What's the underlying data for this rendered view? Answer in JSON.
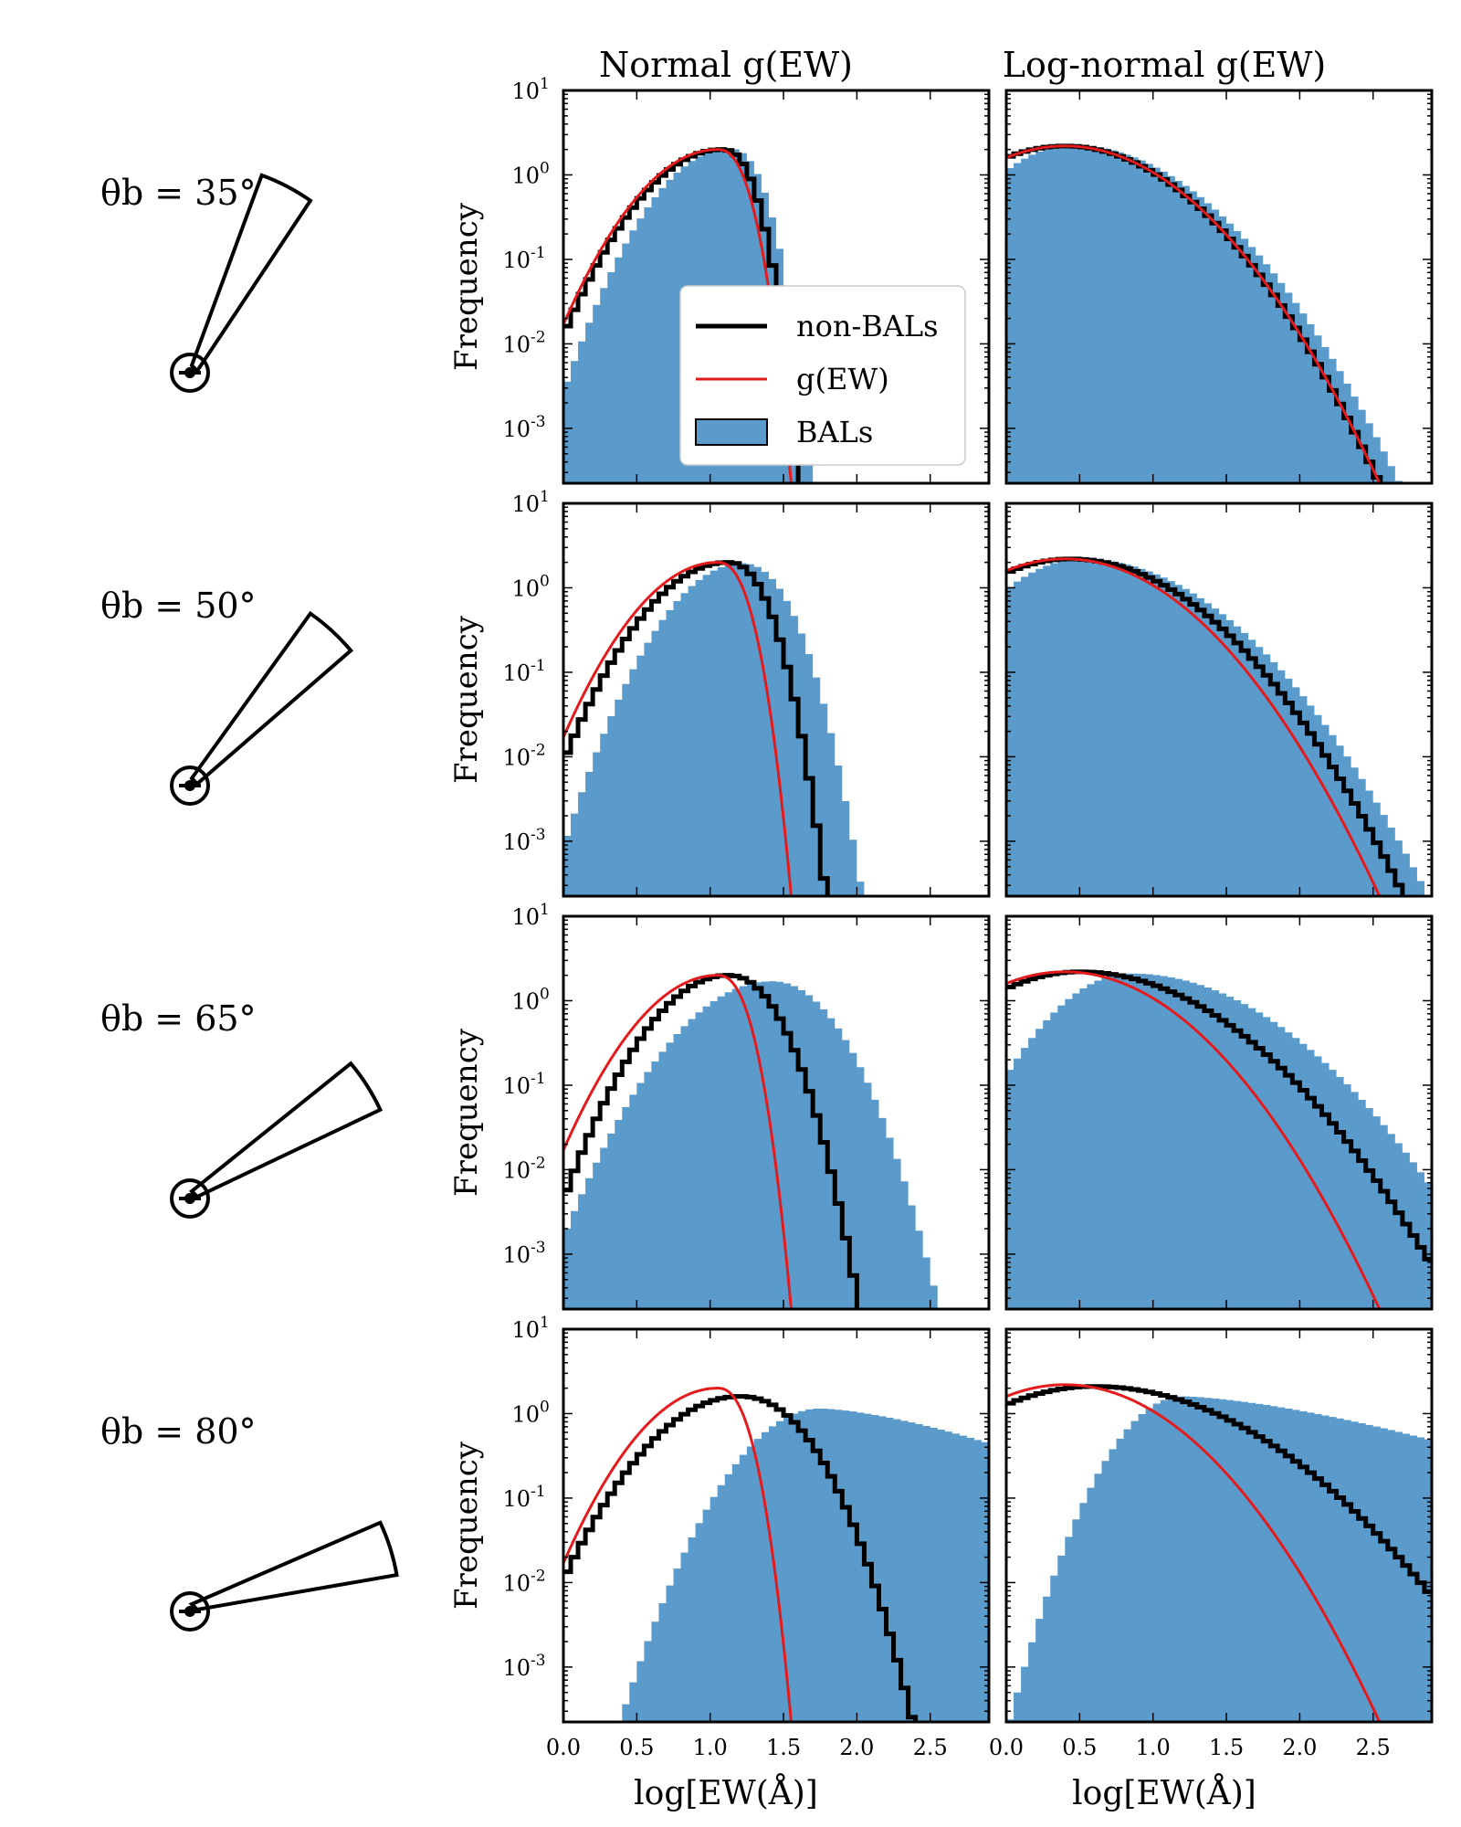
{
  "figure": {
    "column_titles": [
      "Normal g(EW)",
      "Log-normal g(EW)"
    ],
    "ylabel": "Frequency",
    "xlabel": "log[EW(Å)]",
    "x_ticks": [
      "0.0",
      "0.5",
      "1.0",
      "1.5",
      "2.0",
      "2.5"
    ],
    "y_ticks": [
      "10-3",
      "10-2",
      "10-1",
      "100",
      "101"
    ],
    "legend": {
      "non_bals": "non-BALs",
      "g_ew": "g(EW)",
      "bals": "BALs"
    },
    "row_labels": [
      "θb = 35°",
      "θb = 50°",
      "θb = 65°",
      "θb = 80°"
    ],
    "colors": {
      "bals": "#5b9bcb",
      "g_ew": "#e41a1c",
      "non_bals": "#000000"
    }
  },
  "chart_data": {
    "type": "histogram-grid",
    "x_range": [
      0.0,
      2.9
    ],
    "y_range_log10": [
      -3.65,
      1.0
    ],
    "bin_width": 0.05,
    "rows": [
      {
        "theta_b_deg": 35,
        "normal": {
          "g_ew": {
            "peak_x": 1.05,
            "peak_y": 2.0,
            "left_sigma": 0.34,
            "right_sigma": 0.15,
            "right_power": 2.4
          },
          "non_bals": {
            "peak_x": 1.08,
            "peak_y": 2.0,
            "left_sigma": 0.34,
            "right_sigma": 0.16,
            "right_power": 2.4
          },
          "bals": {
            "peak_x": 1.13,
            "peak_y": 2.05,
            "left_sigma": 0.31,
            "right_sigma": 0.17,
            "right_power": 2.4
          }
        },
        "lognormal": {
          "g_ew": {
            "peak_x": 0.4,
            "peak_y": 2.2,
            "left_sigma": 0.5,
            "right_sigma": 0.5,
            "right_power": 2
          },
          "non_bals": {
            "peak_x": 0.4,
            "peak_y": 2.2,
            "left_sigma": 0.5,
            "right_sigma": 0.5,
            "right_power": 2
          },
          "bals": {
            "peak_x": 0.45,
            "peak_y": 2.25,
            "left_sigma": 0.38,
            "right_sigma": 0.52,
            "right_power": 2
          }
        }
      },
      {
        "theta_b_deg": 50,
        "normal": {
          "g_ew": {
            "peak_x": 1.05,
            "peak_y": 2.0,
            "left_sigma": 0.34,
            "right_sigma": 0.15,
            "right_power": 2.4
          },
          "non_bals": {
            "peak_x": 1.12,
            "peak_y": 2.0,
            "left_sigma": 0.34,
            "right_sigma": 0.19,
            "right_power": 2.3
          },
          "bals": {
            "peak_x": 1.22,
            "peak_y": 1.95,
            "left_sigma": 0.31,
            "right_sigma": 0.22,
            "right_power": 2.2
          }
        },
        "lognormal": {
          "g_ew": {
            "peak_x": 0.4,
            "peak_y": 2.2,
            "left_sigma": 0.5,
            "right_sigma": 0.5,
            "right_power": 2
          },
          "non_bals": {
            "peak_x": 0.44,
            "peak_y": 2.2,
            "left_sigma": 0.5,
            "right_sigma": 0.53,
            "right_power": 2
          },
          "bals": {
            "peak_x": 0.52,
            "peak_y": 2.2,
            "left_sigma": 0.4,
            "right_sigma": 0.55,
            "right_power": 2
          }
        }
      },
      {
        "theta_b_deg": 65,
        "normal": {
          "g_ew": {
            "peak_x": 1.05,
            "peak_y": 2.0,
            "left_sigma": 0.34,
            "right_sigma": 0.15,
            "right_power": 2.4
          },
          "non_bals": {
            "peak_x": 1.12,
            "peak_y": 2.0,
            "left_sigma": 0.32,
            "right_sigma": 0.24,
            "right_power": 2.2
          },
          "bals": {
            "peak_x": 1.42,
            "peak_y": 1.7,
            "left_sigma": 0.38,
            "right_sigma": 0.29,
            "right_power": 2.1
          }
        },
        "lognormal": {
          "g_ew": {
            "peak_x": 0.4,
            "peak_y": 2.2,
            "left_sigma": 0.5,
            "right_sigma": 0.5,
            "right_power": 2
          },
          "non_bals": {
            "peak_x": 0.5,
            "peak_y": 2.2,
            "left_sigma": 0.52,
            "right_sigma": 0.6,
            "right_power": 2
          },
          "bals": {
            "peak_x": 0.85,
            "peak_y": 2.1,
            "left_sigma": 0.36,
            "right_sigma": 0.6,
            "right_power": 2
          }
        }
      },
      {
        "theta_b_deg": 80,
        "normal": {
          "g_ew": {
            "peak_x": 1.05,
            "peak_y": 2.0,
            "left_sigma": 0.34,
            "right_sigma": 0.15,
            "right_power": 2.4
          },
          "non_bals": {
            "peak_x": 1.2,
            "peak_y": 1.6,
            "left_sigma": 0.38,
            "right_sigma": 0.32,
            "right_power": 2.2
          },
          "bals": {
            "peak_x": 1.75,
            "peak_y": 1.15,
            "left_sigma": 0.33,
            "right_sigma": 0.75,
            "right_power": 1.5
          }
        },
        "lognormal": {
          "g_ew": {
            "peak_x": 0.4,
            "peak_y": 2.2,
            "left_sigma": 0.5,
            "right_sigma": 0.5,
            "right_power": 2
          },
          "non_bals": {
            "peak_x": 0.6,
            "peak_y": 2.1,
            "left_sigma": 0.6,
            "right_sigma": 0.68,
            "right_power": 2
          },
          "bals": {
            "peak_x": 1.2,
            "peak_y": 1.6,
            "left_sigma": 0.28,
            "right_sigma": 0.95,
            "right_power": 1.5
          }
        }
      }
    ]
  }
}
